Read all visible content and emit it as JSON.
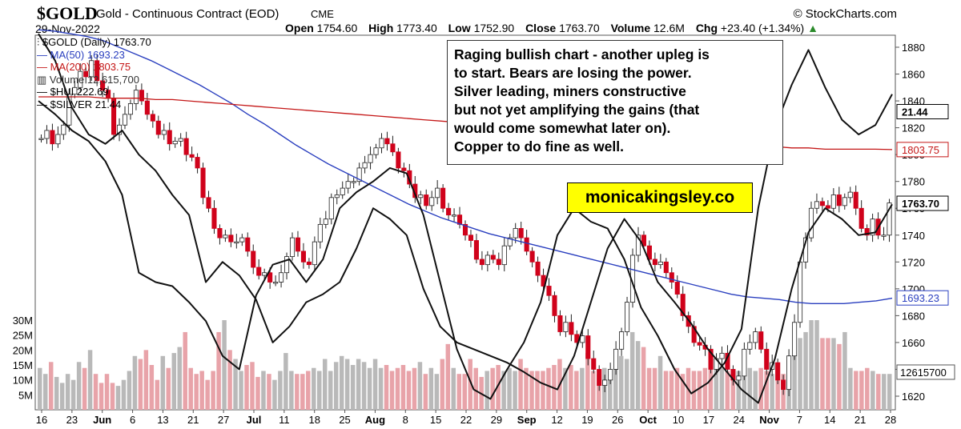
{
  "header": {
    "ticker": "$GOLD",
    "name": "Gold - Continuous Contract (EOD)",
    "exchange": "CME",
    "copyright": "© StockCharts.com",
    "date": "29-Nov-2022"
  },
  "ohlc": {
    "open_label": "Open",
    "open": "1754.60",
    "high_label": "High",
    "high": "1773.40",
    "low_label": "Low",
    "low": "1752.90",
    "close_label": "Close",
    "close": "1763.70",
    "volume_label": "Volume",
    "volume": "12.6M",
    "chg_label": "Chg",
    "chg": "+23.40 (+1.34%)"
  },
  "legend": {
    "main": "$GOLD (Daily) 1763.70",
    "ma50": "MA(50) 1693.23",
    "ma200": "MA(200) 1803.75",
    "volume": "Volume 12,615,700",
    "hui": "$HUI 222.69",
    "silver": "$SILVER 21.44"
  },
  "annotation": {
    "lines": [
      "Raging bullish chart - another upleg is",
      "to start. Bears are losing the power.",
      "Silver leading, miners constructive",
      "but not yet amplifying the gains (that",
      "would come somewhat later on).",
      "Copper to do fine as well."
    ]
  },
  "brand": "monicakingsley.co",
  "price_tags": {
    "silver": "21.44",
    "ma200": "1803.75",
    "close": "1763.70",
    "ma50": "1693.23",
    "volume": "12615700"
  },
  "colors": {
    "up": "#c9c9c9",
    "down": "#d0021b",
    "ma50": "#2a3fbf",
    "ma200": "#c41616",
    "vol_up": "#b9b9b9",
    "vol_down": "#e8a3a9",
    "brand_bg": "#ffff00"
  },
  "chart_data": {
    "type": "line",
    "title": "$GOLD Gold - Continuous Contract (EOD)",
    "xlabel": "",
    "ylabel": "",
    "ylim": [
      1610,
      1890
    ],
    "y_ticks": [
      1620,
      1640,
      1660,
      1680,
      1700,
      1720,
      1740,
      1760,
      1780,
      1800,
      1820,
      1840,
      1860,
      1880
    ],
    "volume_ticks": [
      "5M",
      "10M",
      "15M",
      "20M",
      "25M",
      "30M"
    ],
    "volume_tick_values": [
      5,
      10,
      15,
      20,
      25,
      30
    ],
    "x_tick_labels": [
      "16",
      "23",
      "Jun",
      "6",
      "13",
      "21",
      "27",
      "Jul",
      "11",
      "18",
      "25",
      "Aug",
      "8",
      "15",
      "22",
      "29",
      "Sep",
      "12",
      "19",
      "26",
      "Oct",
      "10",
      "17",
      "24",
      "Nov",
      "7",
      "14",
      "21",
      "28"
    ],
    "x_tick_months": [
      "Jun",
      "Jul",
      "Aug",
      "Sep",
      "Oct",
      "Nov"
    ],
    "gold_close": [
      1812,
      1818,
      1808,
      1815,
      1822,
      1845,
      1850,
      1862,
      1858,
      1870,
      1855,
      1848,
      1842,
      1815,
      1822,
      1830,
      1838,
      1848,
      1840,
      1830,
      1825,
      1815,
      1818,
      1808,
      1810,
      1812,
      1800,
      1798,
      1790,
      1768,
      1760,
      1745,
      1738,
      1740,
      1735,
      1735,
      1738,
      1728,
      1716,
      1710,
      1712,
      1705,
      1705,
      1712,
      1724,
      1738,
      1728,
      1720,
      1718,
      1735,
      1748,
      1752,
      1768,
      1770,
      1775,
      1780,
      1780,
      1790,
      1794,
      1800,
      1805,
      1812,
      1808,
      1802,
      1790,
      1788,
      1778,
      1768,
      1770,
      1762,
      1768,
      1775,
      1760,
      1755,
      1755,
      1748,
      1740,
      1736,
      1722,
      1718,
      1725,
      1722,
      1718,
      1732,
      1738,
      1745,
      1738,
      1728,
      1720,
      1710,
      1702,
      1695,
      1680,
      1668,
      1675,
      1666,
      1660,
      1665,
      1648,
      1640,
      1628,
      1632,
      1640,
      1655,
      1668,
      1690,
      1725,
      1740,
      1732,
      1722,
      1718,
      1720,
      1712,
      1705,
      1696,
      1680,
      1672,
      1660,
      1658,
      1655,
      1640,
      1648,
      1652,
      1640,
      1632,
      1635,
      1655,
      1660,
      1668,
      1655,
      1640,
      1645,
      1632,
      1625,
      1650,
      1675,
      1720,
      1738,
      1760,
      1765,
      1762,
      1760,
      1770,
      1762,
      1768,
      1772,
      1760,
      1745,
      1740,
      1752,
      1740,
      1740,
      1764
    ],
    "series": [
      {
        "name": "MA(50)",
        "values": [
          1893,
          1892,
          1890,
          1888,
          1885,
          1880,
          1875,
          1870,
          1864,
          1858,
          1852,
          1845,
          1838,
          1830,
          1823,
          1815,
          1807,
          1800,
          1793,
          1787,
          1781,
          1775,
          1769,
          1763,
          1758,
          1753,
          1749,
          1745,
          1741,
          1738,
          1735,
          1732,
          1729,
          1726,
          1723,
          1720,
          1717,
          1714,
          1711,
          1708,
          1705,
          1702,
          1699,
          1696,
          1694,
          1693,
          1692,
          1690,
          1689,
          1689,
          1689,
          1690,
          1691,
          1693
        ]
      },
      {
        "name": "MA(200)",
        "values": [
          1843,
          1843,
          1843,
          1843,
          1842,
          1842,
          1842,
          1841,
          1841,
          1840,
          1839,
          1838,
          1837,
          1836,
          1835,
          1834,
          1833,
          1832,
          1831,
          1830,
          1829,
          1828,
          1827,
          1826,
          1825,
          1824,
          1823,
          1822,
          1821,
          1820,
          1819,
          1818,
          1817,
          1816,
          1815,
          1814,
          1813,
          1812,
          1811,
          1810,
          1809,
          1808,
          1807,
          1806,
          1806,
          1805,
          1805,
          1804,
          1804,
          1804,
          1804,
          1803.75
        ]
      },
      {
        "name": "$HUI",
        "values": [
          1890,
          1870,
          1835,
          1815,
          1808,
          1818,
          1800,
          1788,
          1770,
          1755,
          1705,
          1720,
          1710,
          1692,
          1660,
          1672,
          1690,
          1696,
          1705,
          1730,
          1760,
          1752,
          1740,
          1700,
          1672,
          1660,
          1655,
          1650,
          1645,
          1638,
          1630,
          1625,
          1650,
          1690,
          1730,
          1752,
          1735,
          1705,
          1690,
          1674,
          1655,
          1640,
          1625,
          1615,
          1648,
          1700,
          1742,
          1760,
          1752,
          1740,
          1742,
          1763
        ]
      },
      {
        "name": "$SILVER",
        "values": [
          1840,
          1830,
          1818,
          1810,
          1795,
          1770,
          1712,
          1705,
          1702,
          1690,
          1676,
          1650,
          1640,
          1695,
          1718,
          1722,
          1705,
          1722,
          1760,
          1772,
          1780,
          1790,
          1786,
          1755,
          1705,
          1655,
          1625,
          1618,
          1640,
          1660,
          1690,
          1740,
          1760,
          1750,
          1745,
          1722,
          1686,
          1665,
          1640,
          1622,
          1630,
          1645,
          1670,
          1760,
          1820,
          1852,
          1878,
          1850,
          1826,
          1815,
          1822,
          1845
        ]
      }
    ],
    "volume_values_m": [
      14,
      12,
      16,
      11,
      9,
      12,
      10,
      16,
      14,
      20,
      12,
      9,
      12,
      9,
      8,
      10,
      13,
      18,
      17,
      20,
      15,
      10,
      18,
      14,
      19,
      21,
      26,
      14,
      12,
      13,
      10,
      13,
      26,
      30,
      20,
      17,
      13,
      15,
      16,
      11,
      13,
      12,
      10,
      13,
      19,
      13,
      12,
      12,
      13,
      14,
      13,
      17,
      13,
      16,
      18,
      17,
      15,
      17,
      16,
      14,
      17,
      14,
      15,
      13,
      14,
      15,
      13,
      14,
      16,
      12,
      14,
      12,
      17,
      22,
      14,
      12,
      12,
      17,
      14,
      11,
      13,
      14,
      15,
      13,
      14,
      13,
      17,
      14,
      13,
      13,
      13,
      14,
      15,
      17,
      14,
      15,
      13,
      14,
      19,
      13,
      12,
      14,
      13,
      14,
      18,
      17,
      26,
      23,
      21,
      14,
      14,
      18,
      13,
      13,
      14,
      12,
      14,
      13,
      13,
      14,
      14,
      15,
      14,
      13,
      13,
      13,
      13,
      14,
      13,
      14,
      13,
      12,
      13,
      12,
      12,
      18,
      24,
      26,
      30,
      30,
      24,
      24,
      24,
      22,
      26,
      14,
      13,
      13,
      14,
      13,
      12,
      12,
      12
    ]
  }
}
